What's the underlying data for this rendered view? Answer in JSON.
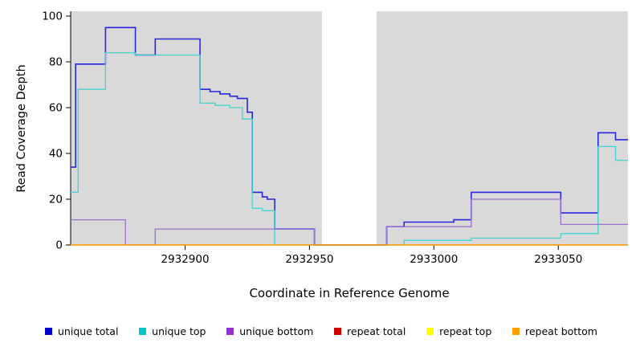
{
  "chart_data": {
    "type": "line",
    "title": "",
    "xlabel": "Coordinate in Reference Genome",
    "ylabel": "Read Coverage Depth",
    "xlim": [
      2932854,
      2933078
    ],
    "ylim": [
      0,
      100
    ],
    "xticks": [
      2932900,
      2932950,
      2933000,
      2933050
    ],
    "yticks": [
      0,
      20,
      40,
      60,
      80,
      100
    ],
    "panel_background": "#d9d9d9",
    "gap_region": {
      "x0": 2932955,
      "x1": 2932977
    },
    "line_style": "step-after",
    "legend_position": "bottom",
    "grid": false,
    "series": [
      {
        "name": "unique total",
        "color": "#2727dd",
        "width": 1.6,
        "points": [
          [
            2932854,
            34
          ],
          [
            2932856,
            79
          ],
          [
            2932868,
            95
          ],
          [
            2932880,
            83
          ],
          [
            2932888,
            90
          ],
          [
            2932906,
            68
          ],
          [
            2932910,
            67
          ],
          [
            2932914,
            66
          ],
          [
            2932918,
            65
          ],
          [
            2932921,
            64
          ],
          [
            2932925,
            58
          ],
          [
            2932927,
            23
          ],
          [
            2932931,
            21
          ],
          [
            2932933,
            20
          ],
          [
            2932936,
            7
          ],
          [
            2932952,
            0
          ],
          [
            2932981,
            8
          ],
          [
            2932988,
            10
          ],
          [
            2933008,
            11
          ],
          [
            2933015,
            23
          ],
          [
            2933051,
            14
          ],
          [
            2933066,
            49
          ],
          [
            2933073,
            46
          ]
        ]
      },
      {
        "name": "unique top",
        "color": "#45d1d1",
        "width": 1.3,
        "points": [
          [
            2932854,
            23
          ],
          [
            2932857,
            68
          ],
          [
            2932868,
            84
          ],
          [
            2932880,
            83
          ],
          [
            2932906,
            62
          ],
          [
            2932912,
            61
          ],
          [
            2932918,
            60
          ],
          [
            2932923,
            55
          ],
          [
            2932927,
            16
          ],
          [
            2932931,
            15
          ],
          [
            2932936,
            0
          ],
          [
            2932981,
            0
          ],
          [
            2932988,
            2
          ],
          [
            2933015,
            3
          ],
          [
            2933051,
            5
          ],
          [
            2933066,
            43
          ],
          [
            2933073,
            37
          ]
        ]
      },
      {
        "name": "unique bottom",
        "color": "#9b72cf",
        "width": 1.3,
        "points": [
          [
            2932854,
            11
          ],
          [
            2932876,
            0
          ],
          [
            2932888,
            7
          ],
          [
            2932952,
            0
          ],
          [
            2932981,
            8
          ],
          [
            2933015,
            20
          ],
          [
            2933051,
            9
          ]
        ]
      },
      {
        "name": "repeat total",
        "color": "#cd0000",
        "width": 1.3,
        "points": [
          [
            2932854,
            0
          ]
        ]
      },
      {
        "name": "repeat top",
        "color": "#ffff00",
        "width": 1.3,
        "points": [
          [
            2932854,
            0
          ]
        ]
      },
      {
        "name": "repeat bottom",
        "color": "#ff9e00",
        "width": 1.3,
        "points": [
          [
            2932854,
            0
          ]
        ]
      }
    ],
    "legend": [
      {
        "label": "unique total",
        "color": "#0000cd"
      },
      {
        "label": "unique top",
        "color": "#00c8c8"
      },
      {
        "label": "unique bottom",
        "color": "#9132cd"
      },
      {
        "label": "repeat total",
        "color": "#cd0000"
      },
      {
        "label": "repeat top",
        "color": "#ffff00"
      },
      {
        "label": "repeat bottom",
        "color": "#ff9e00"
      }
    ]
  }
}
